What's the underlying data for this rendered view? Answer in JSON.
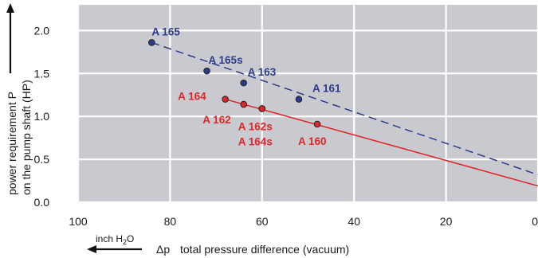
{
  "chart_data": {
    "type": "line",
    "title": "",
    "ylabel_line1": "power requirement P",
    "ylabel_line2": "on the pump shaft (HP)",
    "xlabel_symbol": "Δp",
    "xlabel": "total pressure difference (vacuum)",
    "x_unit_prefix": "inch H",
    "x_unit_sub": "2",
    "x_unit_suffix": "O",
    "xlim": [
      100,
      0
    ],
    "ylim": [
      0,
      2.3
    ],
    "x_ticks": [
      100,
      80,
      60,
      40,
      20,
      0
    ],
    "x_tick_labels": [
      "100",
      "80",
      "60",
      "40",
      "20",
      "0"
    ],
    "y_ticks": [
      0.0,
      0.5,
      1.0,
      1.5,
      2.0
    ],
    "y_tick_labels": [
      "0.0",
      "0.5",
      "1.0",
      "1.5",
      "2.0"
    ],
    "grid": true,
    "colors": {
      "plot_bg": "#c9cacf",
      "grid": "#ffffff",
      "blue": "#2e3a8c",
      "red": "#e0262a"
    },
    "series": [
      {
        "style": "dashed",
        "color": "blue",
        "line": {
          "x": [
            84,
            0
          ],
          "y": [
            1.86,
            0.32
          ]
        },
        "points": [
          {
            "label": "A 165",
            "x": 84,
            "y": 1.86
          },
          {
            "label": "A 165s",
            "x": 72,
            "y": 1.53
          },
          {
            "label": "A 163",
            "x": 64,
            "y": 1.39
          },
          {
            "label": "A 161",
            "x": 52,
            "y": 1.2
          }
        ]
      },
      {
        "style": "solid",
        "color": "red",
        "line": {
          "x": [
            68,
            0
          ],
          "y": [
            1.2,
            0.19
          ]
        },
        "points": [
          {
            "label": "A 164",
            "x": 68,
            "y": 1.2
          },
          {
            "label": "A 162",
            "x": 64,
            "y": 1.14
          },
          {
            "label": "A 162s",
            "x": 60,
            "y": 1.09
          },
          {
            "label": "A 164s",
            "x": 60,
            "y": 1.09
          },
          {
            "label": "A 160",
            "x": 48,
            "y": 0.91
          }
        ]
      }
    ]
  }
}
